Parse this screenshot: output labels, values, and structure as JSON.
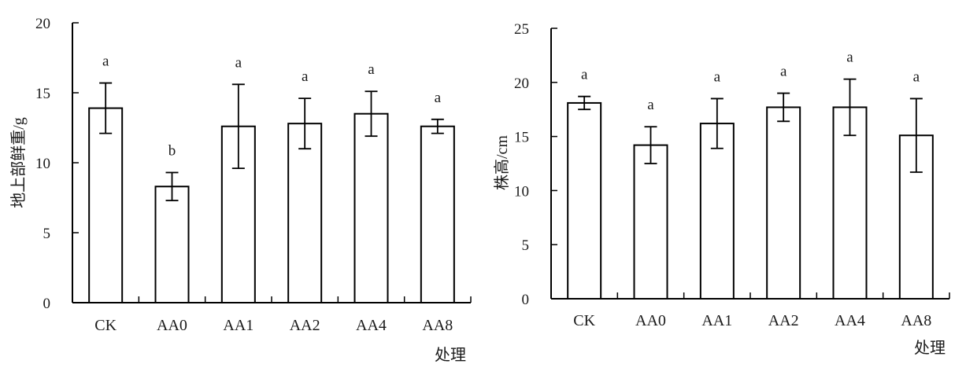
{
  "chart_data": [
    {
      "type": "bar",
      "categories": [
        "CK",
        "AA0",
        "AA1",
        "AA2",
        "AA4",
        "AA8"
      ],
      "series": [
        {
          "values": [
            13.9,
            8.3,
            12.6,
            12.8,
            13.5,
            12.6
          ],
          "errors": [
            1.8,
            1.0,
            3.0,
            1.8,
            1.6,
            0.5
          ],
          "significance": [
            "a",
            "b",
            "a",
            "a",
            "a",
            "a"
          ]
        }
      ],
      "xlabel": "处理",
      "ylabel": "地上部鲜重/g",
      "ylim": [
        0,
        20
      ],
      "yticks": [
        "0",
        "5",
        "10",
        "15",
        "20"
      ],
      "grid": false
    },
    {
      "type": "bar",
      "categories": [
        "CK",
        "AA0",
        "AA1",
        "AA2",
        "AA4",
        "AA8"
      ],
      "series": [
        {
          "values": [
            18.1,
            14.2,
            16.2,
            17.7,
            17.7,
            15.1
          ],
          "errors": [
            0.6,
            1.7,
            2.3,
            1.3,
            2.6,
            3.4
          ],
          "significance": [
            "a",
            "a",
            "a",
            "a",
            "a",
            "a"
          ]
        }
      ],
      "xlabel": "处理",
      "ylabel": "株高/cm",
      "ylim": [
        0,
        25
      ],
      "yticks": [
        "0",
        "5",
        "10",
        "15",
        "20",
        "25"
      ],
      "grid": false
    }
  ]
}
